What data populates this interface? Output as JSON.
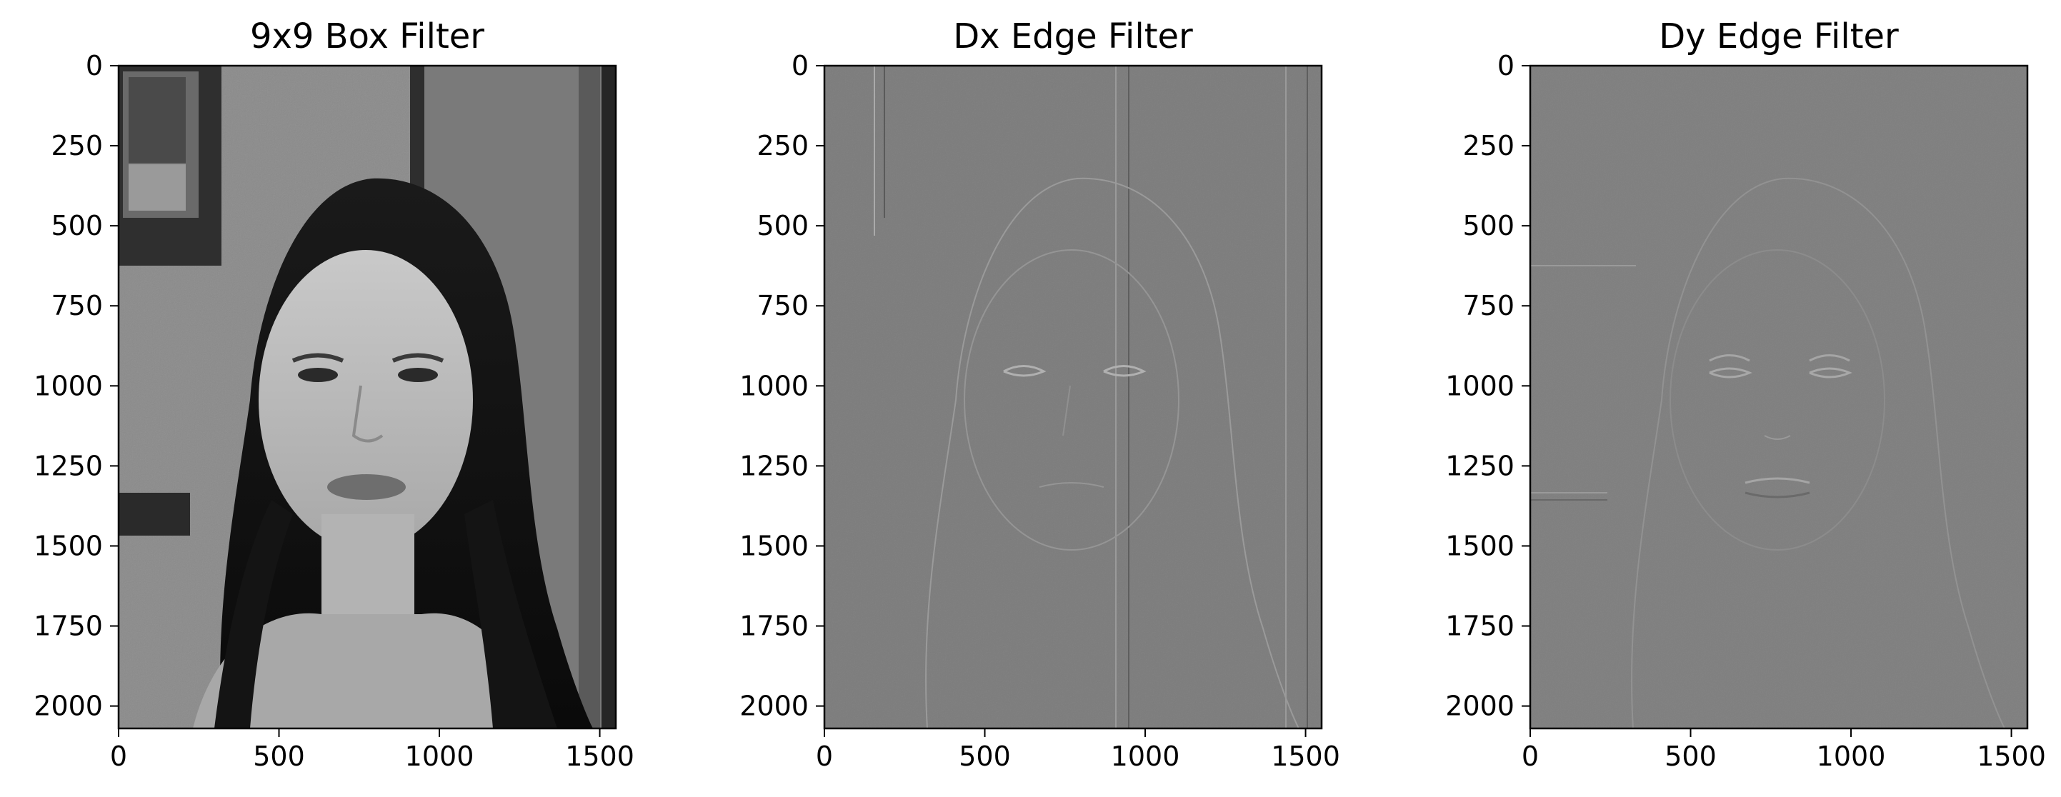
{
  "figure": {
    "panels": [
      {
        "title": "9x9 Box Filter",
        "image": "grayscale portrait photo",
        "xticks": [
          "0",
          "500",
          "1000",
          "1500"
        ],
        "yticks": [
          "0",
          "250",
          "500",
          "750",
          "1000",
          "1250",
          "1500",
          "1750",
          "2000"
        ]
      },
      {
        "title": "Dx Edge Filter",
        "image": "horizontal gradient (edge) map",
        "xticks": [
          "0",
          "500",
          "1000",
          "1500"
        ],
        "yticks": [
          "0",
          "250",
          "500",
          "750",
          "1000",
          "1250",
          "1500",
          "1750",
          "2000"
        ]
      },
      {
        "title": "Dy Edge Filter",
        "image": "vertical gradient (edge) map",
        "xticks": [
          "0",
          "500",
          "1000",
          "1500"
        ],
        "yticks": [
          "0",
          "250",
          "500",
          "750",
          "1000",
          "1250",
          "1500",
          "1750",
          "2000"
        ]
      }
    ],
    "colors": {
      "box_bg": "#8a8a8a",
      "dx_bg": "#7c7c7c",
      "dy_bg": "#7f7f7f",
      "hair": "#121212",
      "skin": "#bdbdbd",
      "dark_frame": "#3a3a3a"
    }
  }
}
